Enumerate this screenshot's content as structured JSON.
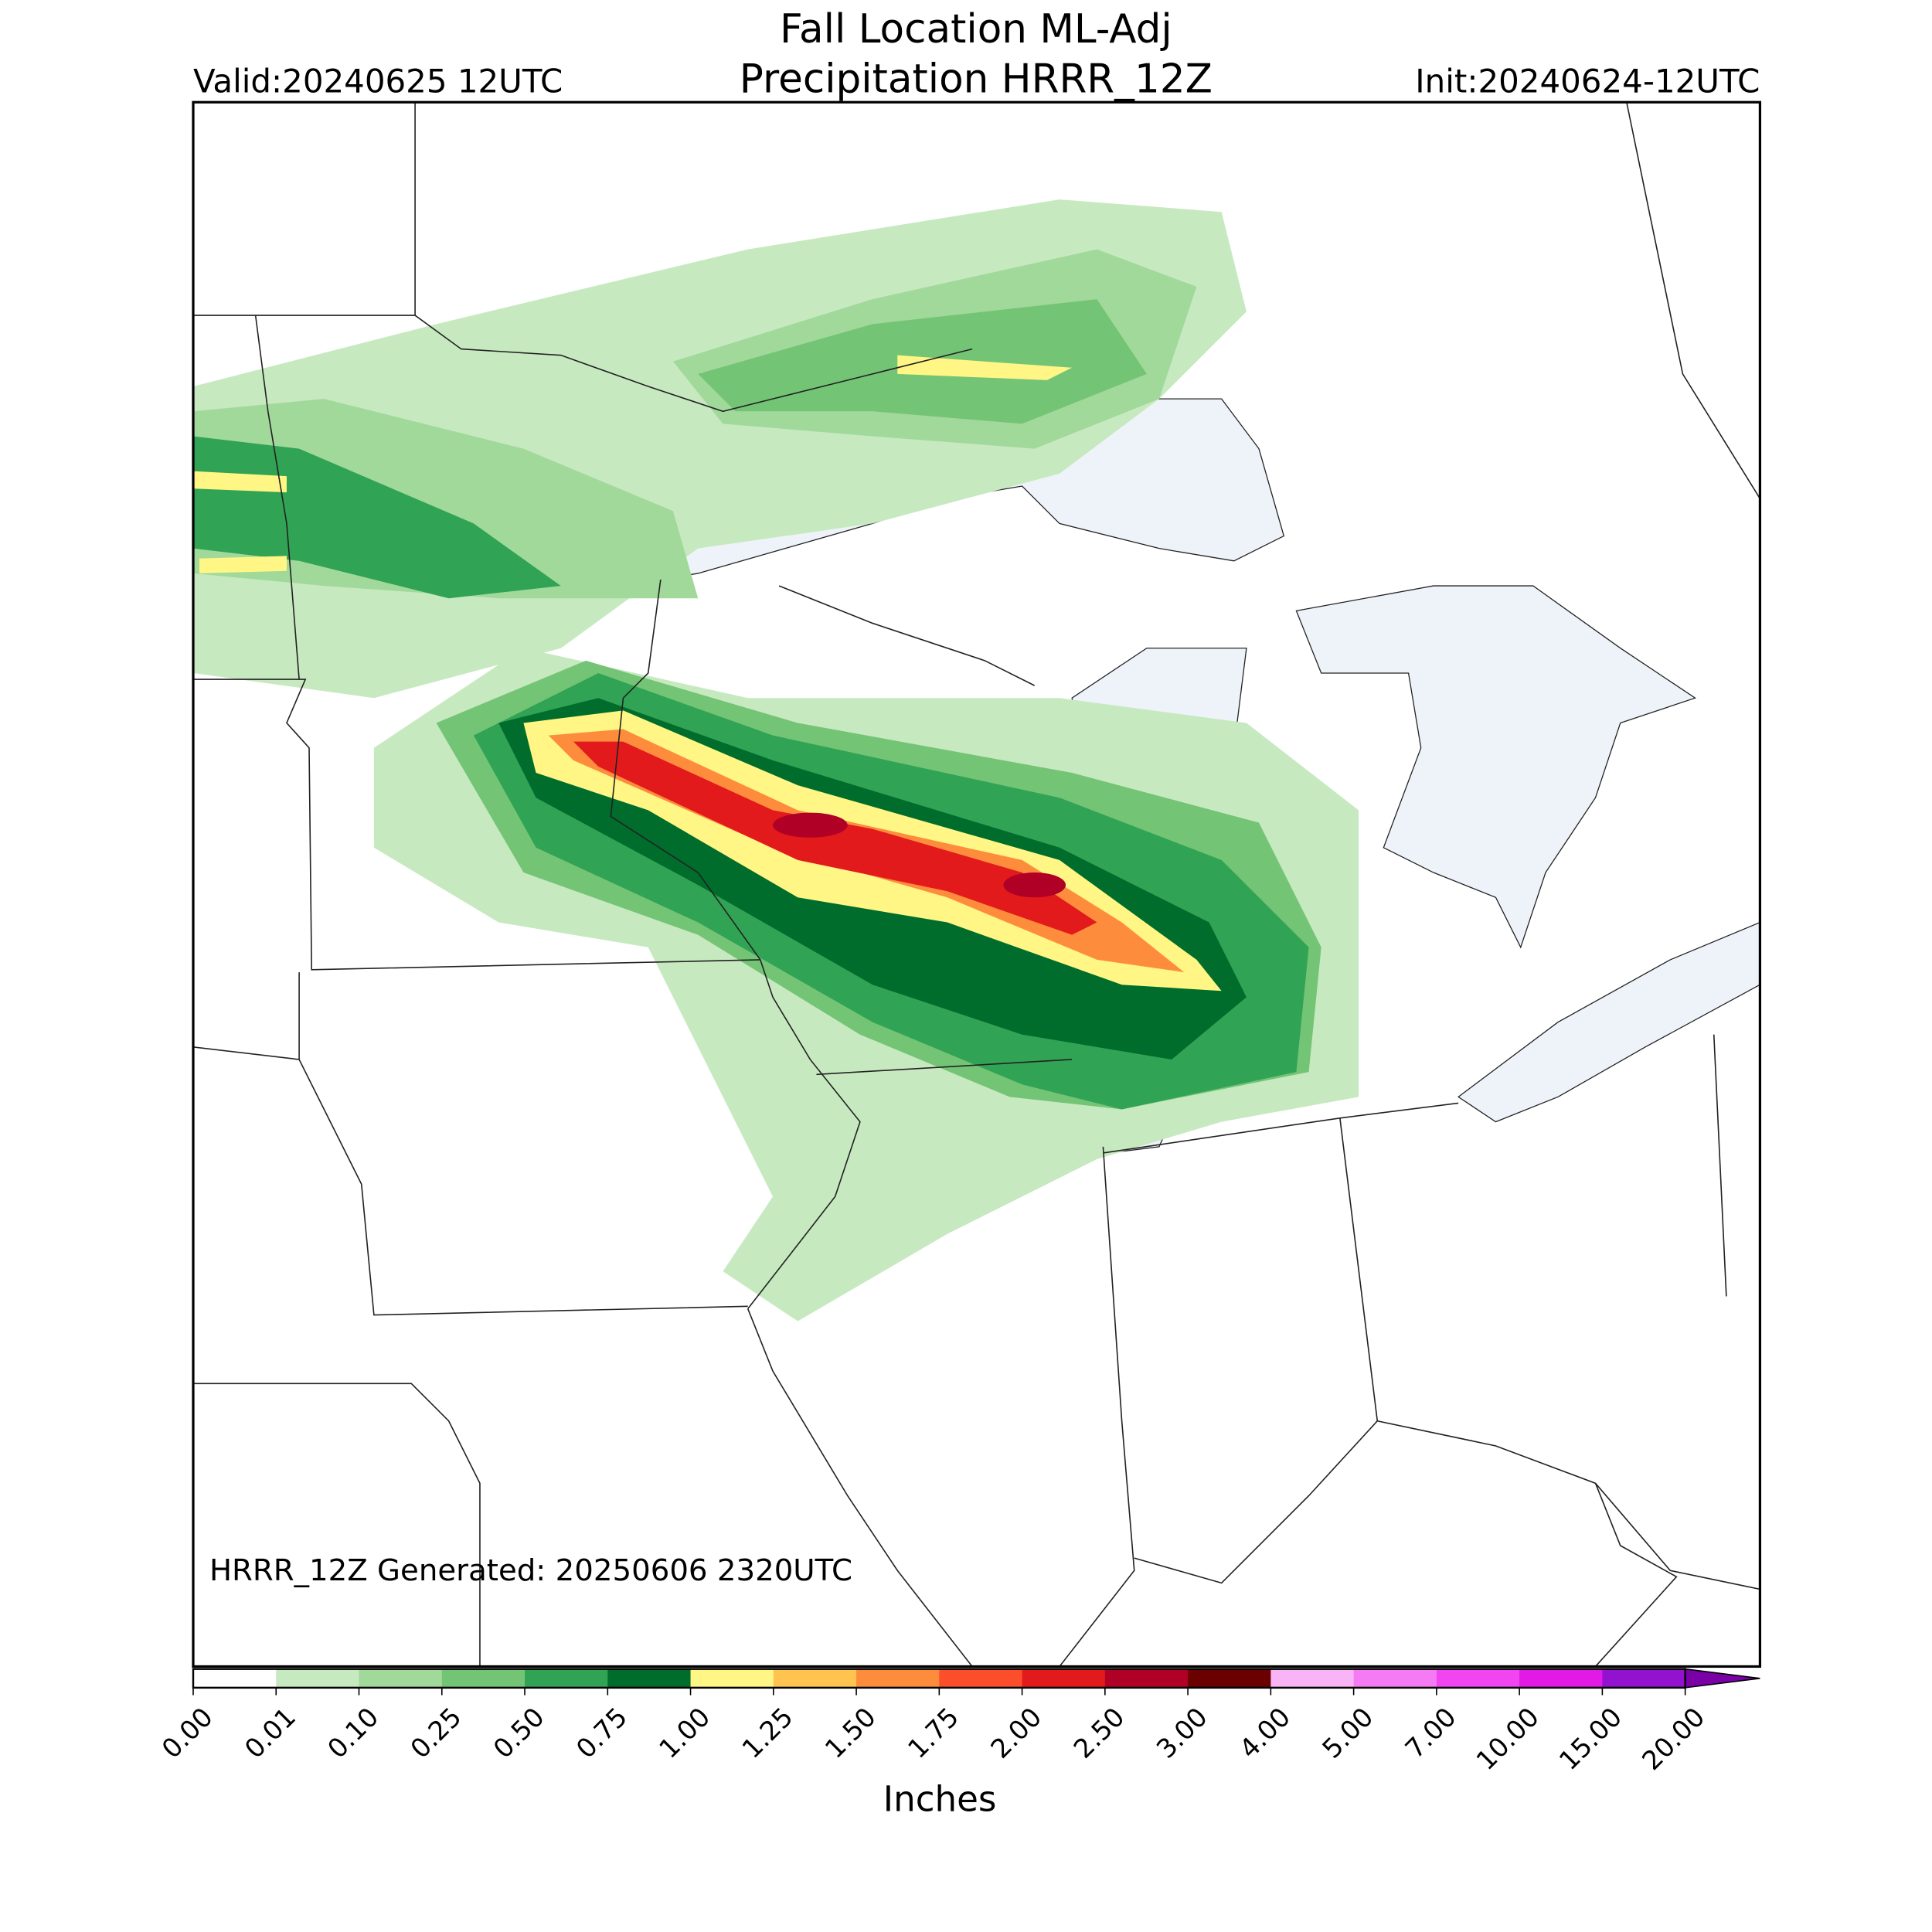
{
  "header": {
    "title_line1": "Fall Location ML-Adj",
    "title_line2": "Precipitation HRRR_12Z",
    "valid": "Valid:20240625 12UTC",
    "init": "Init:20240624-12UTC"
  },
  "map": {
    "note": "HRRR_12Z Generated: 20250606 2320UTC"
  },
  "colorbar": {
    "label": "Inches",
    "ticks": [
      "0.00",
      "0.01",
      "0.10",
      "0.25",
      "0.50",
      "0.75",
      "1.00",
      "1.25",
      "1.50",
      "1.75",
      "2.00",
      "2.50",
      "3.00",
      "4.00",
      "5.00",
      "7.00",
      "10.00",
      "15.00",
      "20.00"
    ],
    "colors": [
      "#ffffff",
      "#c7e9c0",
      "#a1d99b",
      "#74c476",
      "#31a354",
      "#006d2c",
      "#fff685",
      "#fec44f",
      "#fd8d3c",
      "#fc4e2a",
      "#e31a1c",
      "#b10026",
      "#6b0000",
      "#f9b4f5",
      "#f57bf5",
      "#f045f0",
      "#e21ae6",
      "#9212d0"
    ],
    "extend_color": "#7a00a8"
  }
}
